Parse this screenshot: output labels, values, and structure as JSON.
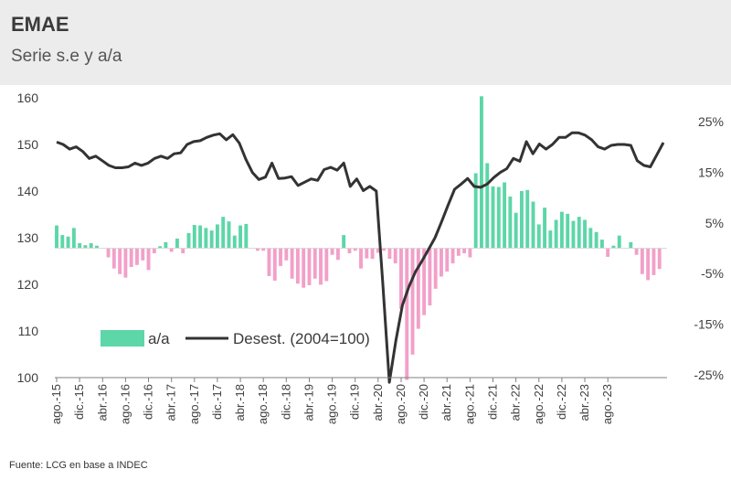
{
  "header": {
    "title": "EMAE",
    "subtitle": "Serie s.e y a/a"
  },
  "source": "Fuente: LCG en base a INDEC",
  "chart_data": {
    "type": "bar+line",
    "title": "EMAE",
    "subtitle": "Serie s.e y a/a",
    "left_axis": {
      "ticks": [
        "160",
        "150",
        "140",
        "130",
        "120",
        "110",
        "100"
      ],
      "range": [
        100,
        160
      ]
    },
    "right_axis": {
      "ticks": [
        "25%",
        "15%",
        "5%",
        "-5%",
        "-15%",
        "-25%"
      ],
      "range": [
        -25,
        30
      ]
    },
    "x_tick_labels": [
      "ago.-15",
      "dic.-15",
      "abr.-16",
      "ago.-16",
      "dic.-16",
      "abr.-17",
      "ago.-17",
      "dic.-17",
      "abr.-18",
      "ago.-18",
      "dic.-18",
      "abr.-19",
      "ago.-19",
      "dic.-19",
      "abr.-20",
      "ago.-20",
      "dic.-20",
      "abr.-21",
      "ago.-21",
      "dic.-21",
      "abr.-22",
      "ago.-22",
      "dic.-22",
      "abr.-23",
      "ago.-23"
    ],
    "legend": [
      {
        "name": "a/a",
        "color": "#5dd6a8"
      },
      {
        "name": "Desest. (2004=100)",
        "color": "#333333"
      }
    ],
    "colors": {
      "positive": "#5dd6a8",
      "negative": "#f2a0c9",
      "line": "#333333"
    },
    "series_yoy_pct": [
      4.5,
      2.6,
      2.3,
      4.0,
      1.0,
      0.6,
      1.0,
      0.5,
      0.0,
      -1.8,
      -4.0,
      -5.1,
      -5.8,
      -3.7,
      -3.3,
      -2.4,
      -4.3,
      -1.0,
      0.4,
      1.2,
      -0.7,
      1.9,
      -1.0,
      3.0,
      4.6,
      4.5,
      4.0,
      3.5,
      4.7,
      6.2,
      5.3,
      2.5,
      4.5,
      4.8,
      0.0,
      -0.5,
      -0.5,
      -5.5,
      -6.4,
      -3.5,
      -2.4,
      -6.0,
      -7.0,
      -7.8,
      -7.3,
      -6.0,
      -7.2,
      -6.5,
      -1.3,
      -2.3,
      2.6,
      -1.0,
      -0.5,
      -4.0,
      -2.0,
      -2.1,
      -0.9,
      -0.5,
      -2.1,
      -3.0,
      -12.0,
      -26.0,
      -21.0,
      -15.9,
      -13.2,
      -11.3,
      -8.0,
      -5.6,
      -4.6,
      -3.0,
      -1.5,
      -1.0,
      -1.8,
      14.8,
      30.0,
      16.8,
      12.2,
      12.1,
      13.0,
      10.2,
      7.0,
      11.3,
      11.5,
      9.2,
      4.7,
      8.0,
      3.5,
      5.6,
      7.2,
      6.8,
      5.4,
      6.2,
      5.6,
      4.0,
      3.2,
      1.7,
      -1.7,
      0.5,
      2.5,
      0.0,
      1.2,
      -1.3,
      -5.1,
      -6.3,
      -5.3,
      -4.1,
      0.0
    ],
    "series_desest_index": [
      150.5,
      150.0,
      149.0,
      149.5,
      148.5,
      147.0,
      147.5,
      146.5,
      145.5,
      145.0,
      145.0,
      145.2,
      146.0,
      145.5,
      146.0,
      147.0,
      147.5,
      147.0,
      148.0,
      148.2,
      150.0,
      150.6,
      150.8,
      151.5,
      152.0,
      152.3,
      151.0,
      152.1,
      150.3,
      146.8,
      144.0,
      142.5,
      143.0,
      146.0,
      142.7,
      142.8,
      143.1,
      141.2,
      141.9,
      142.6,
      142.3,
      144.6,
      145.1,
      144.5,
      146.0,
      141.0,
      142.6,
      140.1,
      141.0,
      140.0,
      120.0,
      99.0,
      108.0,
      115.5,
      119.5,
      122.7,
      125.0,
      127.5,
      130.0,
      133.4,
      137.0,
      140.4,
      141.5,
      142.7,
      141.0,
      140.8,
      141.5,
      142.9,
      144.0,
      144.8,
      147.0,
      146.4,
      150.6,
      148.0,
      150.1,
      149.0,
      150.0,
      151.5,
      151.5,
      152.5,
      152.5,
      152.0,
      151.0,
      149.5,
      149.0,
      149.8,
      150.0,
      150.0,
      149.8,
      146.5,
      145.5,
      145.2,
      147.8,
      150.4
    ]
  }
}
